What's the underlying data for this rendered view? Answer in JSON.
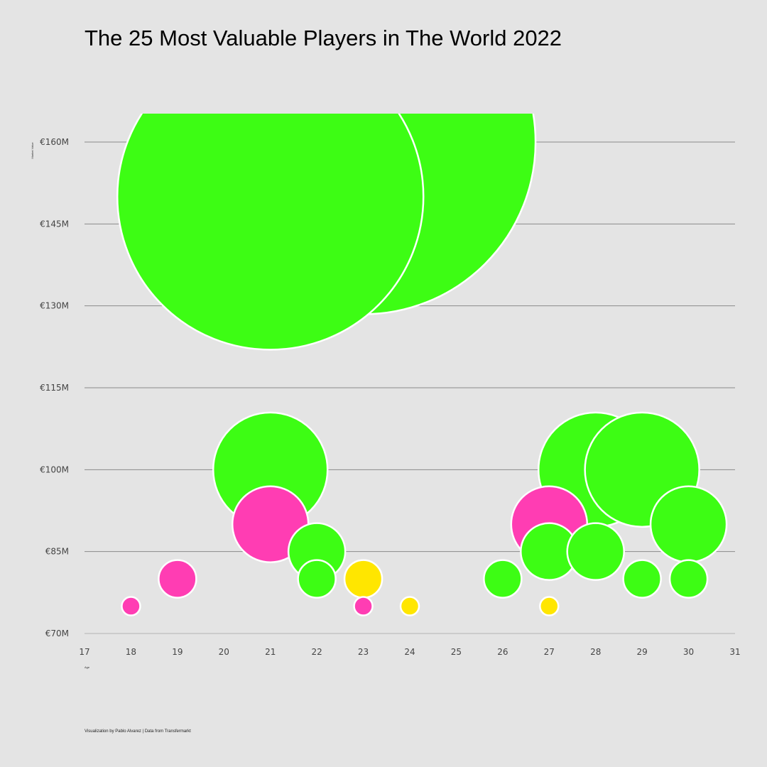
{
  "title": "The 25 Most Valuable Players in The World 2022",
  "credit": "Visualization by Pablo Alvarez | Data from Transfermarkt",
  "chart_data": {
    "type": "scatter",
    "title": "The 25 Most Valuable Players in The World 2022",
    "xlabel": "Age",
    "ylabel": "Market Value",
    "xlim": [
      17,
      31
    ],
    "ylim": [
      70,
      160
    ],
    "x_ticks": [
      17,
      18,
      19,
      20,
      21,
      22,
      23,
      24,
      25,
      26,
      27,
      28,
      29,
      30,
      31
    ],
    "y_ticks": [
      70,
      85,
      100,
      115,
      130,
      145,
      160
    ],
    "y_tick_labels": [
      "€70M",
      "€85M",
      "€100M",
      "€115M",
      "€130M",
      "€145M",
      "€160M"
    ],
    "grid": "horizontal",
    "bubble_size_encodes": "market value",
    "colors": {
      "green": "#3dfd14",
      "pink": "#ff3db3",
      "yellow": "#ffe600"
    },
    "points": [
      {
        "x": 23,
        "y": 160,
        "color": "green"
      },
      {
        "x": 21,
        "y": 150,
        "color": "green"
      },
      {
        "x": 21,
        "y": 100,
        "color": "green"
      },
      {
        "x": 28,
        "y": 100,
        "color": "green"
      },
      {
        "x": 29,
        "y": 100,
        "color": "green"
      },
      {
        "x": 21,
        "y": 90,
        "color": "pink"
      },
      {
        "x": 27,
        "y": 90,
        "color": "pink"
      },
      {
        "x": 30,
        "y": 90,
        "color": "green"
      },
      {
        "x": 22,
        "y": 85,
        "color": "green"
      },
      {
        "x": 27,
        "y": 85,
        "color": "green"
      },
      {
        "x": 28,
        "y": 85,
        "color": "green"
      },
      {
        "x": 19,
        "y": 80,
        "color": "pink"
      },
      {
        "x": 22,
        "y": 80,
        "color": "green"
      },
      {
        "x": 23,
        "y": 80,
        "color": "yellow"
      },
      {
        "x": 26,
        "y": 80,
        "color": "green"
      },
      {
        "x": 29,
        "y": 80,
        "color": "green"
      },
      {
        "x": 30,
        "y": 80,
        "color": "green"
      },
      {
        "x": 18,
        "y": 75,
        "color": "pink"
      },
      {
        "x": 23,
        "y": 75,
        "color": "pink"
      },
      {
        "x": 24,
        "y": 75,
        "color": "yellow"
      },
      {
        "x": 27,
        "y": 75,
        "color": "yellow"
      }
    ]
  }
}
